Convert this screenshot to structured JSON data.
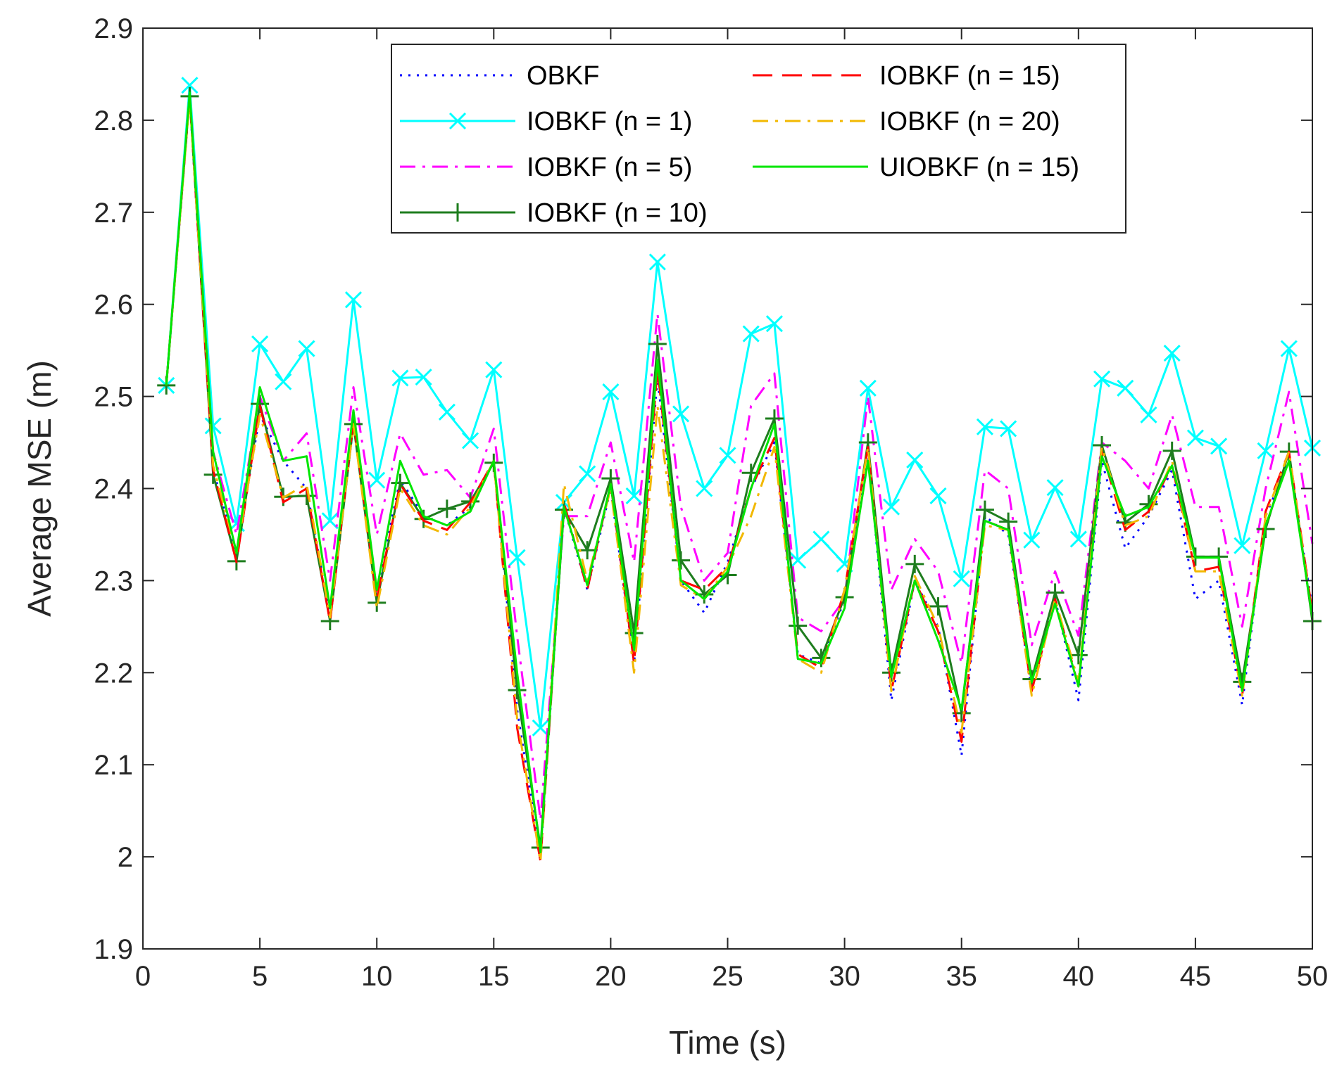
{
  "chart_data": {
    "type": "line",
    "title": "",
    "xlabel": "Time (s)",
    "ylabel": "Average MSE (m)",
    "xlim": [
      0,
      50
    ],
    "ylim": [
      1.9,
      2.9
    ],
    "grid": false,
    "legend_location": "top-center",
    "xticks": [
      0,
      5,
      10,
      15,
      20,
      25,
      30,
      35,
      40,
      45,
      50
    ],
    "xtick_labels": [
      "0",
      "5",
      "10",
      "15",
      "20",
      "25",
      "30",
      "35",
      "40",
      "45",
      "50"
    ],
    "yticks": [
      1.9,
      2.0,
      2.1,
      2.2,
      2.3,
      2.4,
      2.5,
      2.6,
      2.7,
      2.8,
      2.9
    ],
    "ytick_labels": [
      "1.9",
      "2",
      "2.1",
      "2.2",
      "2.3",
      "2.4",
      "2.5",
      "2.6",
      "2.7",
      "2.8",
      "2.9"
    ],
    "x": [
      1,
      2,
      3,
      4,
      5,
      6,
      7,
      8,
      9,
      10,
      11,
      12,
      13,
      14,
      15,
      16,
      17,
      18,
      19,
      20,
      21,
      22,
      23,
      24,
      25,
      26,
      27,
      28,
      29,
      30,
      31,
      32,
      33,
      34,
      35,
      36,
      37,
      38,
      39,
      40,
      41,
      42,
      43,
      44,
      45,
      46,
      47,
      48,
      49,
      50
    ],
    "series": [
      {
        "name": "OBKF",
        "color": "#0000ff",
        "style": "dotted",
        "marker": "none",
        "values": [
          2.512,
          2.825,
          2.42,
          2.33,
          2.48,
          2.43,
          2.4,
          2.26,
          2.47,
          2.29,
          2.41,
          2.37,
          2.36,
          2.38,
          2.43,
          2.16,
          2.0,
          2.38,
          2.29,
          2.4,
          2.21,
          2.52,
          2.3,
          2.265,
          2.32,
          2.4,
          2.45,
          2.22,
          2.21,
          2.28,
          2.44,
          2.17,
          2.3,
          2.25,
          2.11,
          2.37,
          2.35,
          2.18,
          2.28,
          2.17,
          2.43,
          2.335,
          2.37,
          2.42,
          2.28,
          2.3,
          2.165,
          2.37,
          2.43,
          2.27
        ]
      },
      {
        "name": "IOBKF (n = 1)",
        "color": "#00ffff",
        "style": "solid",
        "marker": "x",
        "values": [
          2.512,
          2.838,
          2.468,
          2.362,
          2.557,
          2.516,
          2.552,
          2.365,
          2.605,
          2.409,
          2.52,
          2.521,
          2.483,
          2.452,
          2.529,
          2.325,
          2.14,
          2.385,
          2.416,
          2.505,
          2.392,
          2.646,
          2.481,
          2.4,
          2.436,
          2.568,
          2.579,
          2.322,
          2.345,
          2.318,
          2.509,
          2.38,
          2.431,
          2.392,
          2.302,
          2.467,
          2.465,
          2.344,
          2.401,
          2.345,
          2.519,
          2.509,
          2.48,
          2.547,
          2.455,
          2.446,
          2.338,
          2.441,
          2.552,
          2.444
        ]
      },
      {
        "name": "IOBKF (n = 5)",
        "color": "#ff00ff",
        "style": "dashdot",
        "marker": "none",
        "values": [
          2.512,
          2.83,
          2.44,
          2.35,
          2.5,
          2.43,
          2.46,
          2.3,
          2.51,
          2.35,
          2.46,
          2.415,
          2.42,
          2.39,
          2.465,
          2.24,
          2.04,
          2.37,
          2.37,
          2.45,
          2.32,
          2.59,
          2.38,
          2.3,
          2.33,
          2.49,
          2.525,
          2.26,
          2.245,
          2.28,
          2.5,
          2.29,
          2.345,
          2.31,
          2.21,
          2.42,
          2.4,
          2.23,
          2.31,
          2.24,
          2.45,
          2.43,
          2.4,
          2.48,
          2.38,
          2.38,
          2.25,
          2.4,
          2.505,
          2.34
        ]
      },
      {
        "name": "IOBKF (n = 10)",
        "color": "#1e7d1e",
        "style": "solid",
        "marker": "+",
        "values": [
          2.512,
          2.826,
          2.415,
          2.321,
          2.492,
          2.391,
          2.392,
          2.256,
          2.47,
          2.276,
          2.406,
          2.367,
          2.378,
          2.386,
          2.428,
          2.181,
          2.01,
          2.377,
          2.333,
          2.411,
          2.243,
          2.557,
          2.322,
          2.285,
          2.306,
          2.417,
          2.476,
          2.251,
          2.216,
          2.282,
          2.45,
          2.2,
          2.318,
          2.272,
          2.156,
          2.377,
          2.364,
          2.193,
          2.287,
          2.219,
          2.447,
          2.363,
          2.383,
          2.441,
          2.326,
          2.326,
          2.19,
          2.356,
          2.44,
          2.256
        ]
      },
      {
        "name": "IOBKF (n = 15)",
        "color": "#ff0000",
        "style": "dashed",
        "marker": "none",
        "values": [
          2.512,
          2.825,
          2.42,
          2.32,
          2.49,
          2.385,
          2.4,
          2.255,
          2.475,
          2.28,
          2.405,
          2.365,
          2.355,
          2.385,
          2.43,
          2.14,
          1.995,
          2.385,
          2.29,
          2.405,
          2.21,
          2.53,
          2.3,
          2.29,
          2.315,
          2.4,
          2.455,
          2.22,
          2.205,
          2.29,
          2.445,
          2.18,
          2.3,
          2.245,
          2.125,
          2.365,
          2.355,
          2.18,
          2.28,
          2.185,
          2.44,
          2.355,
          2.375,
          2.425,
          2.31,
          2.315,
          2.175,
          2.375,
          2.44,
          2.265
        ]
      },
      {
        "name": "IOBKF (n = 20)",
        "color": "#f2b800",
        "style": "dashdot",
        "marker": "none",
        "values": [
          2.512,
          2.824,
          2.425,
          2.33,
          2.48,
          2.39,
          2.405,
          2.26,
          2.47,
          2.27,
          2.4,
          2.36,
          2.35,
          2.38,
          2.43,
          2.15,
          1.995,
          2.405,
          2.3,
          2.4,
          2.2,
          2.49,
          2.295,
          2.28,
          2.315,
          2.37,
          2.445,
          2.215,
          2.2,
          2.29,
          2.445,
          2.18,
          2.305,
          2.25,
          2.135,
          2.36,
          2.355,
          2.175,
          2.28,
          2.19,
          2.445,
          2.36,
          2.37,
          2.43,
          2.31,
          2.31,
          2.175,
          2.37,
          2.44,
          2.26
        ]
      },
      {
        "name": "UIOBKF (n = 15)",
        "color": "#00e600",
        "style": "solid",
        "marker": "none",
        "values": [
          2.512,
          2.83,
          2.44,
          2.33,
          2.51,
          2.43,
          2.435,
          2.27,
          2.485,
          2.29,
          2.43,
          2.37,
          2.36,
          2.375,
          2.43,
          2.2,
          2.005,
          2.38,
          2.295,
          2.405,
          2.225,
          2.54,
          2.3,
          2.28,
          2.31,
          2.4,
          2.47,
          2.215,
          2.21,
          2.27,
          2.43,
          2.195,
          2.3,
          2.235,
          2.16,
          2.365,
          2.355,
          2.19,
          2.275,
          2.185,
          2.435,
          2.37,
          2.38,
          2.425,
          2.325,
          2.325,
          2.18,
          2.36,
          2.43,
          2.26
        ]
      }
    ]
  }
}
